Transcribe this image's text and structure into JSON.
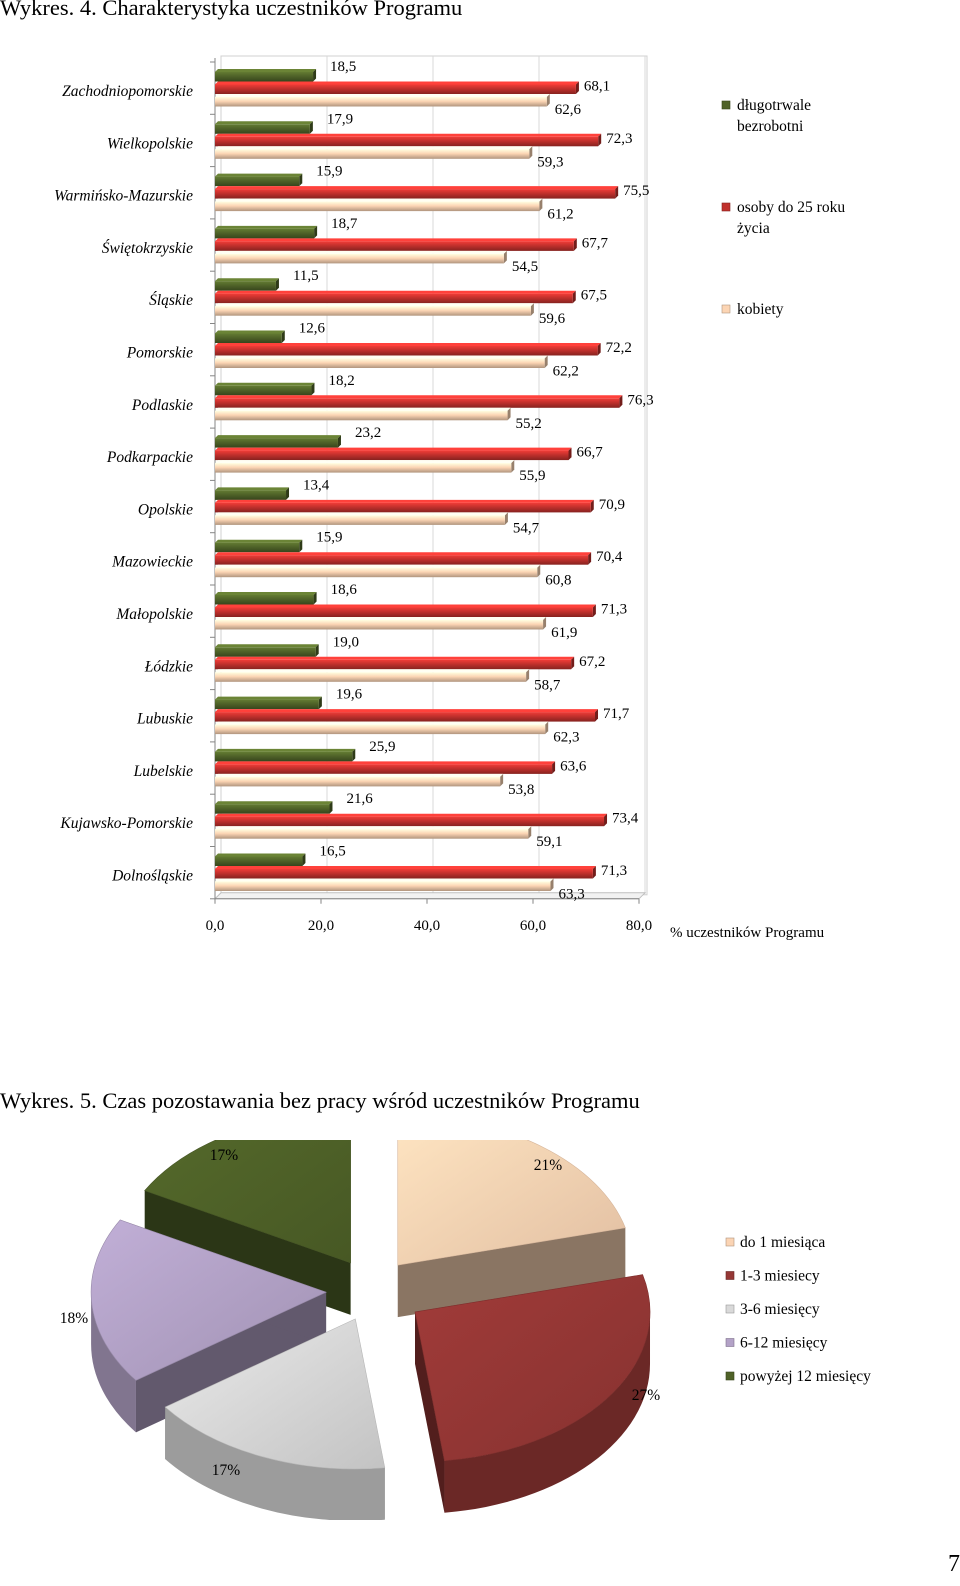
{
  "titles": {
    "chart1": "Wykres. 4. Charakterystyka uczestników Programu",
    "chart2": "Wykres. 5. Czas pozostawania bez pracy wśród uczestników Programu"
  },
  "page_number": "7",
  "colors": {
    "green": "#4f6228",
    "red": "#c0302c",
    "peach": "#fcd5b4",
    "pie_peach": "#fbd4b4",
    "pie_red": "#953735",
    "pie_gray": "#d9d9d9",
    "pie_purple": "#b3a2c7",
    "pie_green": "#4f6228"
  },
  "chart_data": [
    {
      "type": "bar",
      "orientation": "horizontal",
      "title": "Wykres. 4. Charakterystyka uczestników Programu",
      "xlabel": "% uczestników Programu",
      "xlim": [
        0,
        80
      ],
      "xticks": [
        "0,0",
        "20,0",
        "40,0",
        "60,0",
        "80,0"
      ],
      "legend_position": "right",
      "categories": [
        "Zachodniopomorskie",
        "Wielkopolskie",
        "Warmińsko-Mazurskie",
        "Świętokrzyskie",
        "Śląskie",
        "Pomorskie",
        "Podlaskie",
        "Podkarpackie",
        "Opolskie",
        "Mazowieckie",
        "Małopolskie",
        "Łódzkie",
        "Lubuskie",
        "Lubelskie",
        "Kujawsko-Pomorskie",
        "Dolnośląskie"
      ],
      "series": [
        {
          "name": "długotrwale bezrobotni",
          "legend_lines": [
            "długotrwale",
            "bezrobotni"
          ],
          "color": "#4f6228",
          "values": [
            18.5,
            17.9,
            15.9,
            18.7,
            11.5,
            12.6,
            18.2,
            23.2,
            13.4,
            15.9,
            18.6,
            19.0,
            19.6,
            25.9,
            21.6,
            16.5
          ],
          "labels": [
            "18,5",
            "17,9",
            "15,9",
            "18,7",
            "11,5",
            "12,6",
            "18,2",
            "23,2",
            "13,4",
            "15,9",
            "18,6",
            "19,0",
            "19,6",
            "25,9",
            "21,6",
            "16,5"
          ]
        },
        {
          "name": "osoby do 25 roku życia",
          "legend_lines": [
            "osoby do 25 roku",
            "życia"
          ],
          "color": "#c0302c",
          "values": [
            68.1,
            72.3,
            75.5,
            67.7,
            67.5,
            72.2,
            76.3,
            66.7,
            70.9,
            70.4,
            71.3,
            67.2,
            71.7,
            63.6,
            73.4,
            71.3
          ],
          "labels": [
            "68,1",
            "72,3",
            "75,5",
            "67,7",
            "67,5",
            "72,2",
            "76,3",
            "66,7",
            "70,9",
            "70,4",
            "71,3",
            "67,2",
            "71,7",
            "63,6",
            "73,4",
            "71,3"
          ]
        },
        {
          "name": "kobiety",
          "legend_lines": [
            "kobiety"
          ],
          "color": "#fcd5b4",
          "values": [
            62.6,
            59.3,
            61.2,
            54.5,
            59.6,
            62.2,
            55.2,
            55.9,
            54.7,
            60.8,
            61.9,
            58.7,
            62.3,
            53.8,
            59.1,
            63.3
          ],
          "labels": [
            "62,6",
            "59,3",
            "61,2",
            "54,5",
            "59,6",
            "62,2",
            "55,2",
            "55,9",
            "54,7",
            "60,8",
            "61,9",
            "58,7",
            "62,3",
            "53,8",
            "59,1",
            "63,3"
          ]
        }
      ]
    },
    {
      "type": "pie",
      "title": "Wykres. 5. Czas pozostawania bez pracy wśród uczestników Programu",
      "legend_position": "right",
      "slices": [
        {
          "name": "do 1 miesiąca",
          "value": 21,
          "label": "21%",
          "color": "#fbd4b4"
        },
        {
          "name": "1-3 miesiecy",
          "value": 27,
          "label": "27%",
          "color": "#953735"
        },
        {
          "name": "3-6 miesięcy",
          "value": 17,
          "label": "17%",
          "color": "#d9d9d9"
        },
        {
          "name": "6-12 miesięcy",
          "value": 18,
          "label": "18%",
          "color": "#b3a2c7"
        },
        {
          "name": "powyżej 12 miesięcy",
          "value": 17,
          "label": "17%",
          "color": "#4f6228"
        }
      ]
    }
  ]
}
